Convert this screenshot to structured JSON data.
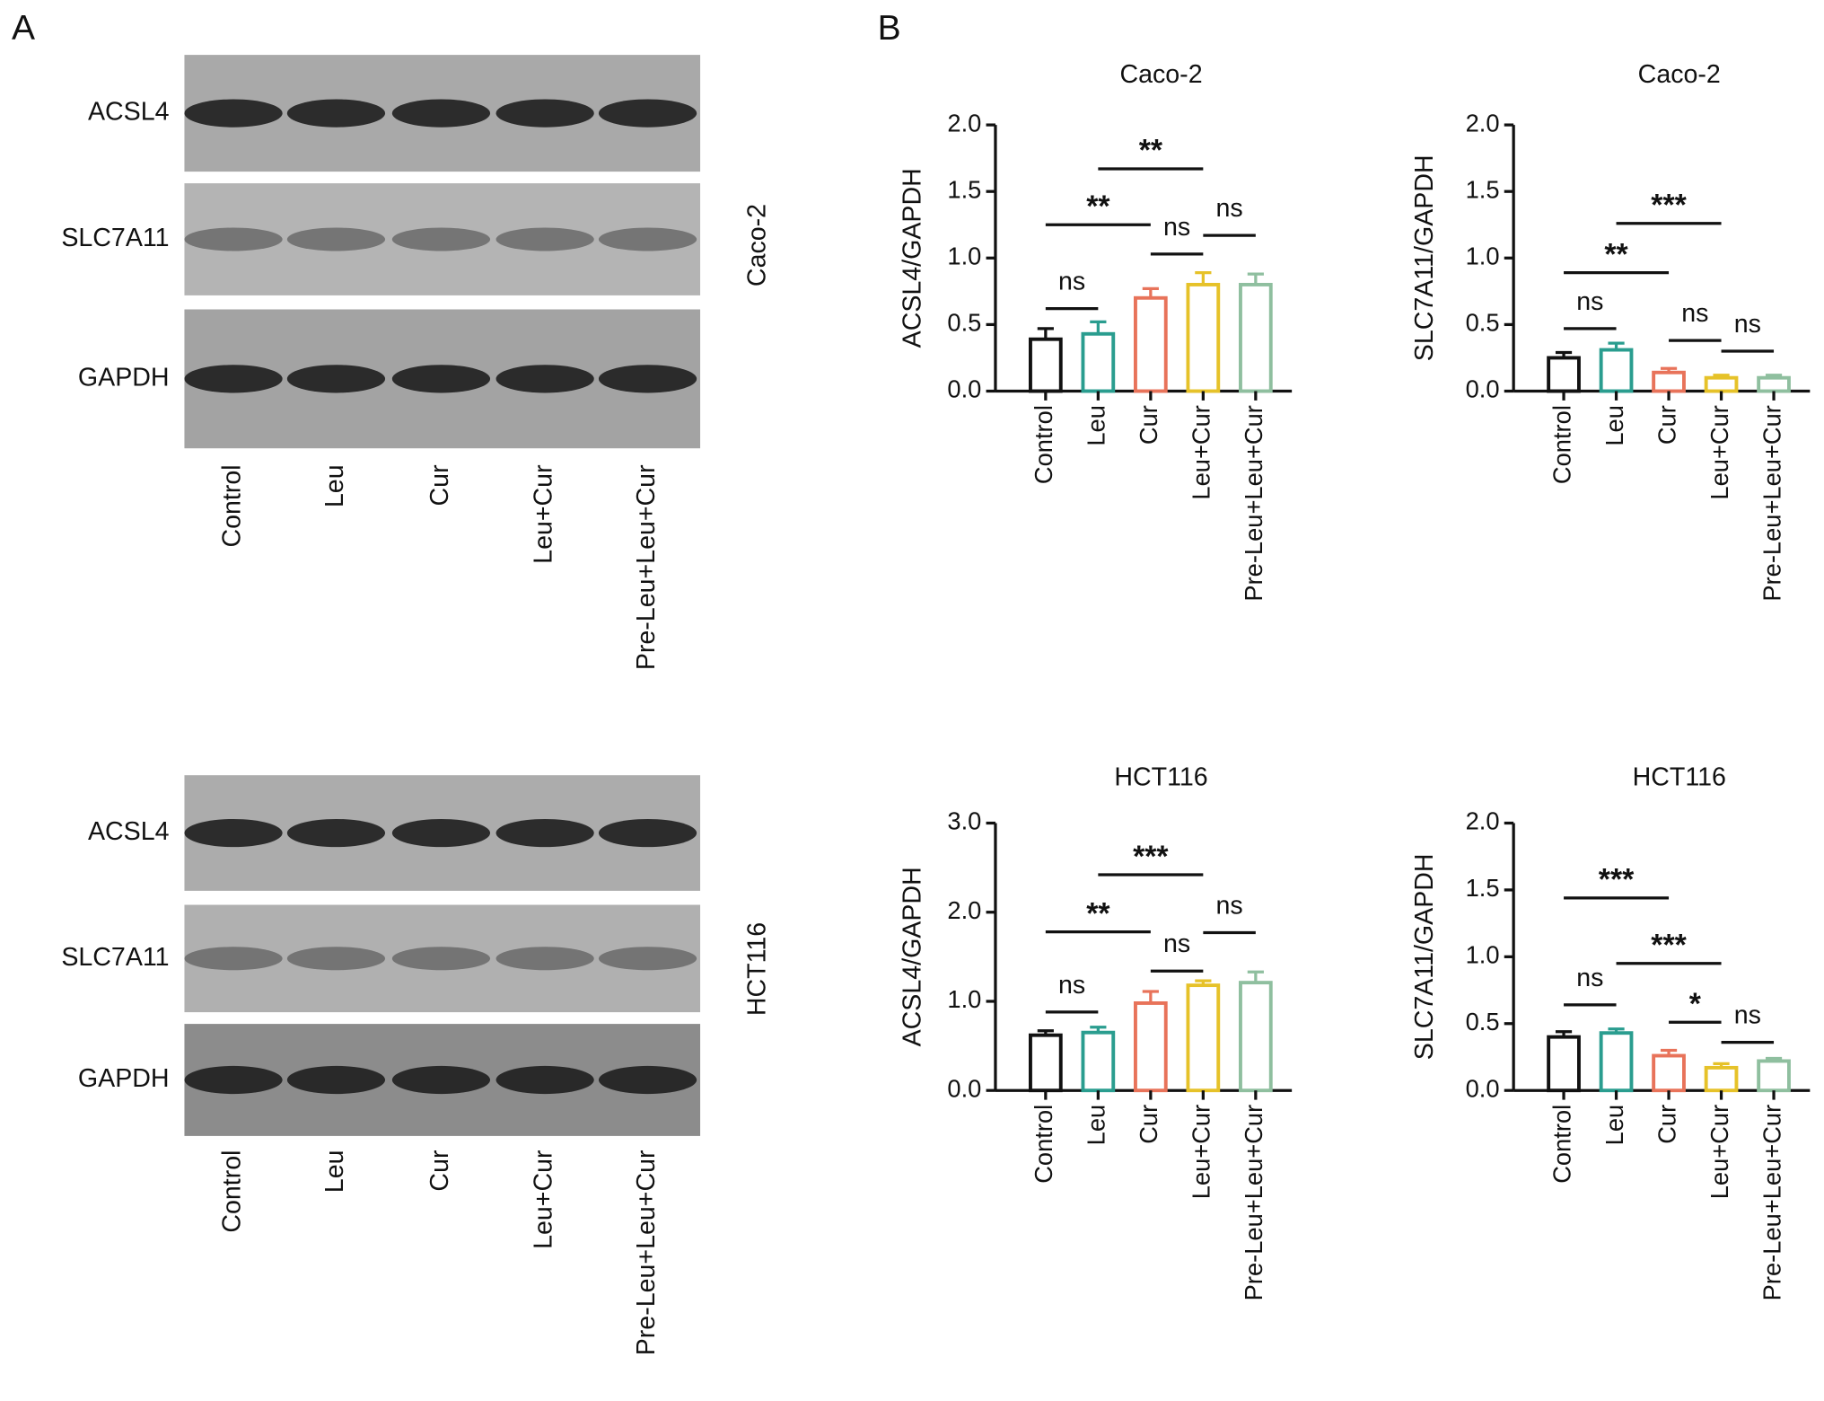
{
  "panel_labels": [
    "A",
    "B"
  ],
  "blots": [
    {
      "cell_line": "Caco-2",
      "proteins": [
        "ACSL4",
        "SLC7A11",
        "GAPDH"
      ],
      "lanes": [
        "Control",
        "Leu",
        "Cur",
        "Leu+Cur",
        "Pre-Leu+Leu+Cur"
      ]
    },
    {
      "cell_line": "HCT116",
      "proteins": [
        "ACSL4",
        "SLC7A11",
        "GAPDH"
      ],
      "lanes": [
        "Control",
        "Leu",
        "Cur",
        "Leu+Cur",
        "Pre-Leu+Leu+Cur"
      ]
    }
  ],
  "chart_data": [
    {
      "type": "bar",
      "title": "Caco-2",
      "y_label": "ACSL4/GAPDH",
      "categories": [
        "Control",
        "Leu",
        "Cur",
        "Leu+Cur",
        "Pre-Leu+Leu+Cur"
      ],
      "values": [
        0.39,
        0.43,
        0.7,
        0.8,
        0.8
      ],
      "errors": [
        0.08,
        0.09,
        0.07,
        0.09,
        0.08
      ],
      "colors": [
        "#111111",
        "#2a9d8f",
        "#e8735a",
        "#e6c229",
        "#8fbf9f"
      ],
      "ylim": [
        0,
        2
      ],
      "yticks": [
        {
          "value": 0,
          "label": "0.0"
        },
        0.5,
        {
          "value": 1,
          "label": "1.0"
        },
        1.5,
        {
          "value": 2,
          "label": "2.0"
        }
      ],
      "comparisons": [
        {
          "from": "Control",
          "to": "Leu",
          "label": "ns",
          "y": 0.62
        },
        {
          "from": "Control",
          "to": "Cur",
          "label": "**",
          "y": 1.25
        },
        {
          "from": "Leu",
          "to": "Leu+Cur",
          "label": "**",
          "y": 1.67
        },
        {
          "from": "Cur",
          "to": "Leu+Cur",
          "label": "ns",
          "y": 1.03
        },
        {
          "from": "Leu+Cur",
          "to": "Pre-Leu+Leu+Cur",
          "label": "ns",
          "y": 1.17
        }
      ]
    },
    {
      "type": "bar",
      "title": "Caco-2",
      "y_label": "SLC7A11/GAPDH",
      "categories": [
        "Control",
        "Leu",
        "Cur",
        "Leu+Cur",
        "Pre-Leu+Leu+Cur"
      ],
      "values": [
        0.25,
        0.31,
        0.14,
        0.1,
        0.1
      ],
      "errors": [
        0.04,
        0.05,
        0.03,
        0.02,
        0.02
      ],
      "colors": [
        "#111111",
        "#2a9d8f",
        "#e8735a",
        "#e6c229",
        "#8fbf9f"
      ],
      "ylim": [
        0,
        2
      ],
      "yticks": [
        {
          "value": 0,
          "label": "0.0"
        },
        0.5,
        {
          "value": 1,
          "label": "1.0"
        },
        1.5,
        {
          "value": 2,
          "label": "2.0"
        }
      ],
      "comparisons": [
        {
          "from": "Control",
          "to": "Leu",
          "label": "ns",
          "y": 0.47
        },
        {
          "from": "Control",
          "to": "Cur",
          "label": "**",
          "y": 0.89
        },
        {
          "from": "Leu",
          "to": "Leu+Cur",
          "label": "***",
          "y": 1.26
        },
        {
          "from": "Cur",
          "to": "Leu+Cur",
          "label": "ns",
          "y": 0.38
        },
        {
          "from": "Leu+Cur",
          "to": "Pre-Leu+Leu+Cur",
          "label": "ns",
          "y": 0.3
        }
      ]
    },
    {
      "type": "bar",
      "title": "HCT116",
      "y_label": "ACSL4/GAPDH",
      "categories": [
        "Control",
        "Leu",
        "Cur",
        "Leu+Cur",
        "Pre-Leu+Leu+Cur"
      ],
      "values": [
        0.62,
        0.65,
        0.98,
        1.18,
        1.21
      ],
      "errors": [
        0.05,
        0.06,
        0.13,
        0.05,
        0.12
      ],
      "colors": [
        "#111111",
        "#2a9d8f",
        "#e8735a",
        "#e6c229",
        "#8fbf9f"
      ],
      "ylim": [
        0,
        3
      ],
      "yticks": [
        {
          "value": 0,
          "label": "0.0"
        },
        {
          "value": 1,
          "label": "1.0"
        },
        {
          "value": 2,
          "label": "2.0"
        },
        {
          "value": 3,
          "label": "3.0"
        }
      ],
      "comparisons": [
        {
          "from": "Control",
          "to": "Leu",
          "label": "ns",
          "y": 0.88
        },
        {
          "from": "Control",
          "to": "Cur",
          "label": "**",
          "y": 1.78
        },
        {
          "from": "Leu",
          "to": "Leu+Cur",
          "label": "***",
          "y": 2.42
        },
        {
          "from": "Cur",
          "to": "Leu+Cur",
          "label": "ns",
          "y": 1.34
        },
        {
          "from": "Leu+Cur",
          "to": "Pre-Leu+Leu+Cur",
          "label": "ns",
          "y": 1.77
        }
      ]
    },
    {
      "type": "bar",
      "title": "HCT116",
      "y_label": "SLC7A11/GAPDH",
      "categories": [
        "Control",
        "Leu",
        "Cur",
        "Leu+Cur",
        "Pre-Leu+Leu+Cur"
      ],
      "values": [
        0.4,
        0.43,
        0.26,
        0.17,
        0.22
      ],
      "errors": [
        0.04,
        0.03,
        0.04,
        0.03,
        0.02
      ],
      "colors": [
        "#111111",
        "#2a9d8f",
        "#e8735a",
        "#e6c229",
        "#8fbf9f"
      ],
      "ylim": [
        0,
        2
      ],
      "yticks": [
        {
          "value": 0,
          "label": "0.0"
        },
        0.5,
        {
          "value": 1,
          "label": "1.0"
        },
        1.5,
        {
          "value": 2,
          "label": "2.0"
        }
      ],
      "comparisons": [
        {
          "from": "Control",
          "to": "Cur",
          "label": "***",
          "y": 1.44
        },
        {
          "from": "Control",
          "to": "Leu",
          "label": "ns",
          "y": 0.64
        },
        {
          "from": "Leu",
          "to": "Leu+Cur",
          "label": "***",
          "y": 0.95
        },
        {
          "from": "Cur",
          "to": "Leu+Cur",
          "label": "*",
          "y": 0.51
        },
        {
          "from": "Leu+Cur",
          "to": "Pre-Leu+Leu+Cur",
          "label": "ns",
          "y": 0.36
        }
      ]
    }
  ]
}
